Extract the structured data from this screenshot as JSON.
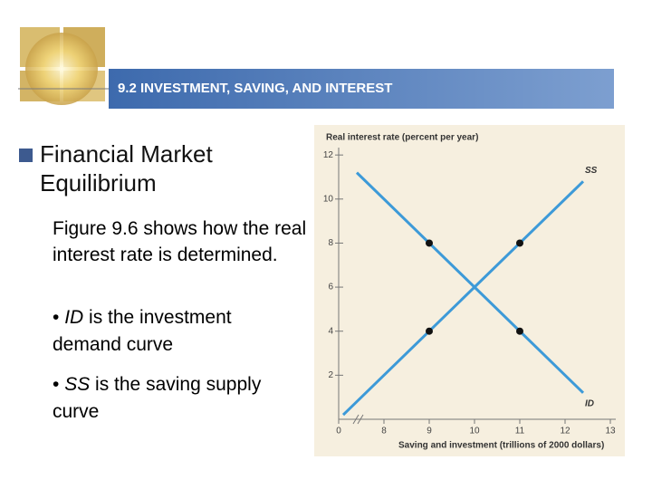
{
  "header": {
    "title": "9.2 INVESTMENT, SAVING, AND INTEREST"
  },
  "heading": "Financial Market Equilibrium",
  "paragraph": "Figure 9.6 shows how the real interest rate is determined.",
  "bullets": [
    {
      "term": "ID",
      "text": "is the investment demand curve"
    },
    {
      "term": "SS",
      "text": "is the saving supply curve"
    }
  ],
  "chart_data": {
    "type": "line",
    "y_label": "Real interest rate (percent per year)",
    "x_label": "Saving and investment (trillions of 2000 dollars)",
    "xlim": [
      7,
      13.1
    ],
    "ylim": [
      0,
      12.5
    ],
    "xticks": [
      {
        "value": 7,
        "label": "0"
      },
      8,
      9,
      10,
      11,
      12,
      13
    ],
    "yticks": [
      2,
      4,
      6,
      8,
      10,
      12
    ],
    "grid": false,
    "series": [
      {
        "name": "SS",
        "color": "#3d9ad8",
        "x": [
          7.1,
          12.4
        ],
        "values": [
          0.2,
          10.8
        ]
      },
      {
        "name": "ID",
        "color": "#3d9ad8",
        "x": [
          7.4,
          12.4
        ],
        "values": [
          11.2,
          1.2
        ]
      }
    ],
    "points": {
      "color": "#111111",
      "x": [
        9,
        11,
        9,
        11
      ],
      "values": [
        8,
        8,
        4,
        4
      ]
    }
  }
}
